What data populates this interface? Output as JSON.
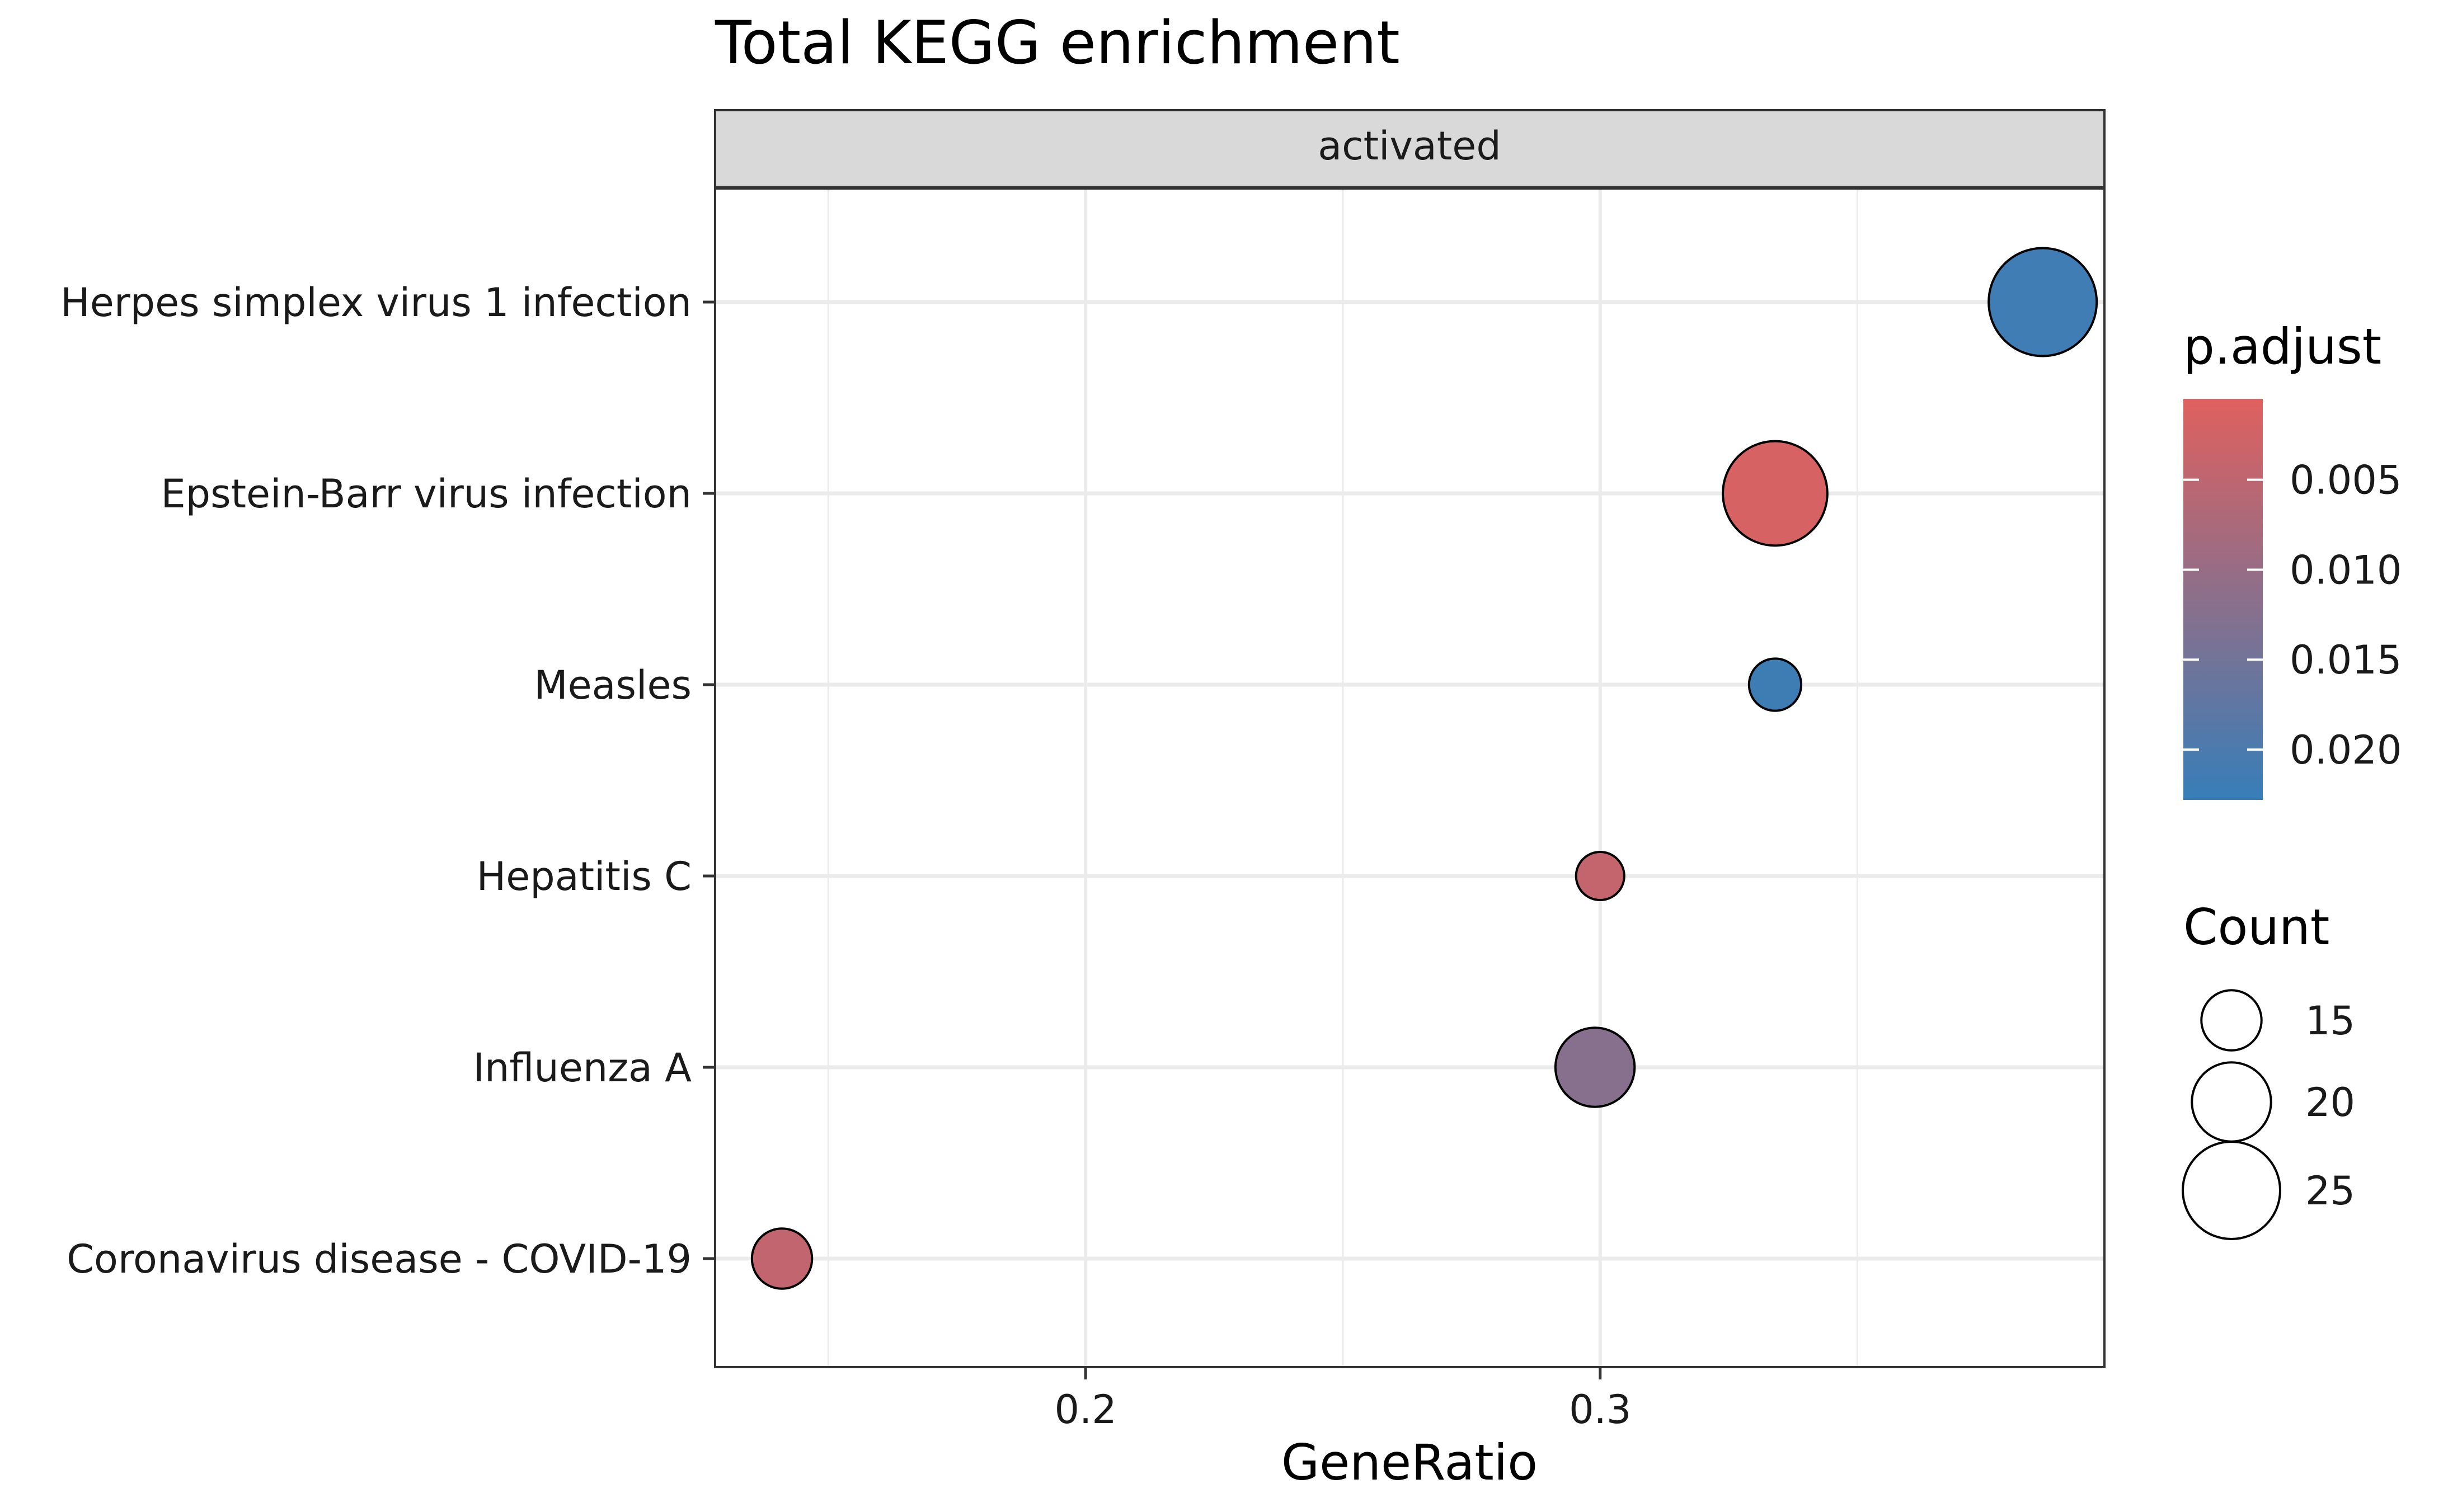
{
  "chart_data": {
    "type": "scatter",
    "title": "Total KEGG enrichment",
    "facet_label": "activated",
    "xlabel": "GeneRatio",
    "ylabel": "",
    "xlim": [
      0.128,
      0.398
    ],
    "x_ticks": [
      0.2,
      0.3
    ],
    "x_tick_labels": [
      "0.2",
      "0.3"
    ],
    "x_minor_ticks": [
      0.15,
      0.25,
      0.35
    ],
    "grid": true,
    "categories": [
      "Herpes simplex virus 1 infection",
      "Epstein-Barr virus infection",
      "Measles",
      "Hepatitis C",
      "Influenza A",
      "Coronavirus disease - COVID-19"
    ],
    "points": [
      {
        "category": "Herpes simplex virus 1 infection",
        "x": 0.386,
        "count": 28,
        "p_adjust": 0.0218
      },
      {
        "category": "Epstein-Barr virus infection",
        "x": 0.334,
        "count": 27,
        "p_adjust": 0.0018
      },
      {
        "category": "Measles",
        "x": 0.334,
        "count": 13,
        "p_adjust": 0.0219
      },
      {
        "category": "Hepatitis C",
        "x": 0.3,
        "count": 12,
        "p_adjust": 0.0042
      },
      {
        "category": "Influenza A",
        "x": 0.299,
        "count": 20,
        "p_adjust": 0.0122
      },
      {
        "category": "Coronavirus disease - COVID-19",
        "x": 0.141,
        "count": 15,
        "p_adjust": 0.0045
      }
    ],
    "color_legend": {
      "title": "p.adjust",
      "range": [
        0.0005,
        0.0228
      ],
      "ticks": [
        0.005,
        0.01,
        0.015,
        0.02
      ],
      "tick_labels": [
        "0.005",
        "0.010",
        "0.015",
        "0.020"
      ],
      "low_color": "#E0605E",
      "high_color": "#377EB8",
      "placement": "right"
    },
    "size_legend": {
      "title": "Count",
      "values": [
        15,
        20,
        25
      ],
      "labels": [
        "15",
        "20",
        "25"
      ],
      "placement": "right"
    }
  }
}
